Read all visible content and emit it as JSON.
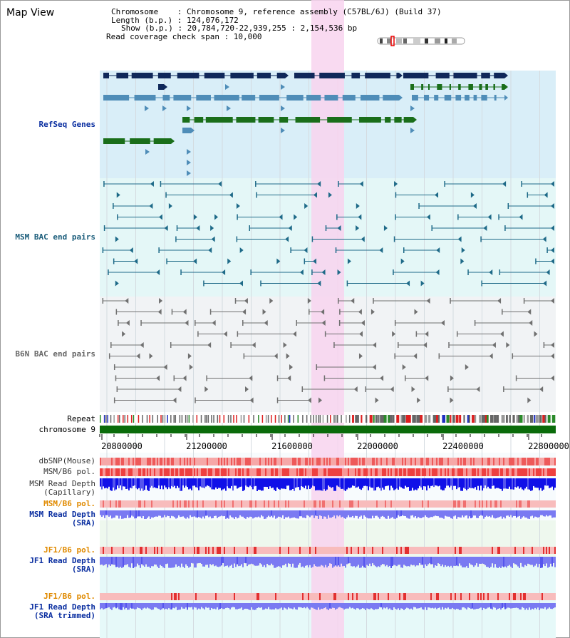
{
  "page": {
    "title": "Map View"
  },
  "info": {
    "chromosome_line": "Chromosome    : Chromosome 9, reference assembly (C57BL/6J) (Build 37)",
    "length_line": "Length (b.p.) : 124,076,172",
    "show_line": "Show (b.p.) : 20,784,720-22,939,255 : 2,154,536 bp",
    "read_span_line": "Read coverage check span : 10,000"
  },
  "tracks": {
    "refseq": "RefSeq Genes",
    "msm_bac": "MSM BAC end pairs",
    "b6n_bac": "B6N BAC end pairs",
    "repeat": "Repeat",
    "chromosome": "chromosome 9",
    "dbsnp": "dbSNP(Mouse)",
    "msm_b6_pol_1": "MSM/B6 pol.",
    "msm_depth_cap_1": "MSM Read Depth",
    "msm_depth_cap_2": "(Capillary)",
    "msm_b6_pol_2": "MSM/B6 pol.",
    "msm_depth_sra_1": "MSM Read Depth",
    "msm_depth_sra_2": "(SRA)",
    "jf1_pol_1": "JF1/B6 pol.",
    "jf1_depth_sra_1": "JF1 Read Depth",
    "jf1_depth_sra_2": "(SRA)",
    "jf1_pol_2": "JF1/B6 pol.",
    "jf1_depth_trim_1": "JF1 Read Depth",
    "jf1_depth_trim_2": "(SRA trimmed)"
  },
  "axis": {
    "ticks": [
      "20800000",
      "21200000",
      "21600000",
      "22000000",
      "22400000",
      "22800000"
    ]
  },
  "colors": {
    "refseq_bg": "#d9eef8",
    "msm_bg": "#e4f7f7",
    "b6n_bg": "#f1f3f5",
    "highlight": "#f8d4ee",
    "gene_navy": "#10285a",
    "gene_steel": "#4f8db8",
    "gene_green": "#1a6e1a",
    "msm_pair": "#1e6a88",
    "b6n_pair": "#707070",
    "chromosome": "#0a6b0a",
    "depth_blue": "#1010e8",
    "depth_light": "#7a7af2",
    "pol_red": "#f25050",
    "label_blue": "#0a2ea0",
    "label_teal": "#1a5c7a",
    "label_orange": "#e08a00",
    "label_green": "#2a6e2a"
  }
}
